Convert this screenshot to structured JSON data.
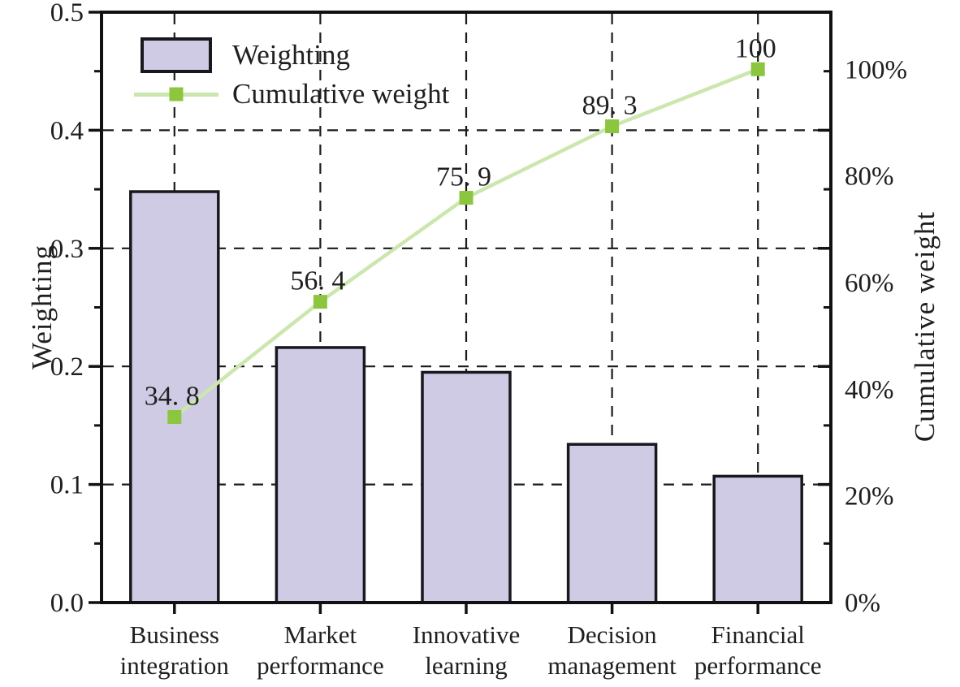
{
  "chart_data": {
    "type": "bar",
    "subtype": "pareto-bar-line-dual-axis",
    "categories": [
      "Business integration",
      "Market performance",
      "Innovative learning",
      "Decision management",
      "Financial performance"
    ],
    "series": [
      {
        "name": "Weighting",
        "type": "bar",
        "axis": "left",
        "values": [
          0.348,
          0.216,
          0.195,
          0.134,
          0.107
        ]
      },
      {
        "name": "Cumulative weight",
        "type": "line",
        "axis": "right",
        "values": [
          34.8,
          56.4,
          75.9,
          89.3,
          100
        ],
        "point_labels": [
          "34. 8",
          "56. 4",
          "75. 9",
          "89. 3",
          "100"
        ]
      }
    ],
    "legend": [
      "Weighting",
      "Cumulative weight"
    ],
    "legend_position": "top-left",
    "ylabel_left": "Weighting",
    "ylabel_right": "Cumulative weight",
    "xlabel": "",
    "title": "",
    "left_axis": {
      "tick_labels": [
        "0.0",
        "0.1",
        "0.2",
        "0.3",
        "0.4",
        "0.5"
      ],
      "tick_values": [
        0,
        0.1,
        0.2,
        0.3,
        0.4,
        0.5
      ],
      "minor_step": 0.05,
      "lim": [
        0,
        0.5
      ]
    },
    "right_axis": {
      "tick_labels": [
        "0%",
        "20%",
        "40%",
        "60%",
        "80%",
        "100%"
      ],
      "tick_values": [
        0,
        20,
        40,
        60,
        80,
        100
      ],
      "lim": [
        0,
        110.7
      ]
    },
    "grid": "dashed-black-both-directions",
    "colors": {
      "bar_fill": "#cfcbe4",
      "bar_border": "#18181f",
      "line": "#cbe7ae",
      "marker": "#8cc63e",
      "grid": "#1a1a1a",
      "spine": "#111111",
      "text": "#1f1f1f",
      "background": "#ffffff"
    }
  }
}
